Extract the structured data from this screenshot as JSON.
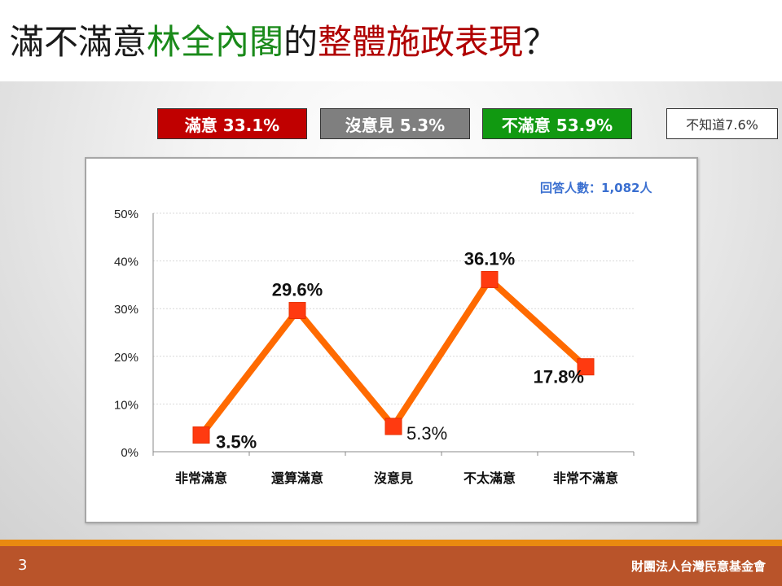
{
  "title": {
    "part1": "滿不滿意",
    "part2": "林全內閣",
    "part3": "的",
    "part4": "整體施政表現",
    "part5": "？",
    "colors": {
      "part1": "#1a1a1a",
      "part2": "#1a8a1a",
      "part3": "#1a1a1a",
      "part4": "#b00000",
      "part5": "#1a1a1a"
    }
  },
  "summary_boxes": {
    "satisfied": "滿意 33.1%",
    "no_opinion": "沒意見 5.3%",
    "dissatisfied": "不滿意 53.9%",
    "dont_know": "不知道7.6%"
  },
  "respondents": "回答人數：1,082人",
  "footer": {
    "page_number": "3",
    "organization": "財團法人台灣民意基金會"
  },
  "chart_data": {
    "type": "line",
    "categories": [
      "非常滿意",
      "還算滿意",
      "沒意見",
      "不太滿意",
      "非常不滿意"
    ],
    "values": [
      3.5,
      29.6,
      5.3,
      36.1,
      17.8
    ],
    "data_labels": [
      "3.5%",
      "29.6%",
      "5.3%",
      "36.1%",
      "17.8%"
    ],
    "data_label_bold": [
      true,
      true,
      false,
      true,
      true
    ],
    "ylim": [
      0,
      50
    ],
    "yticks": [
      "0%",
      "10%",
      "20%",
      "30%",
      "40%",
      "50%"
    ],
    "grid": true,
    "line_color": "#ff6a00",
    "marker_color": "#ff3a10"
  }
}
